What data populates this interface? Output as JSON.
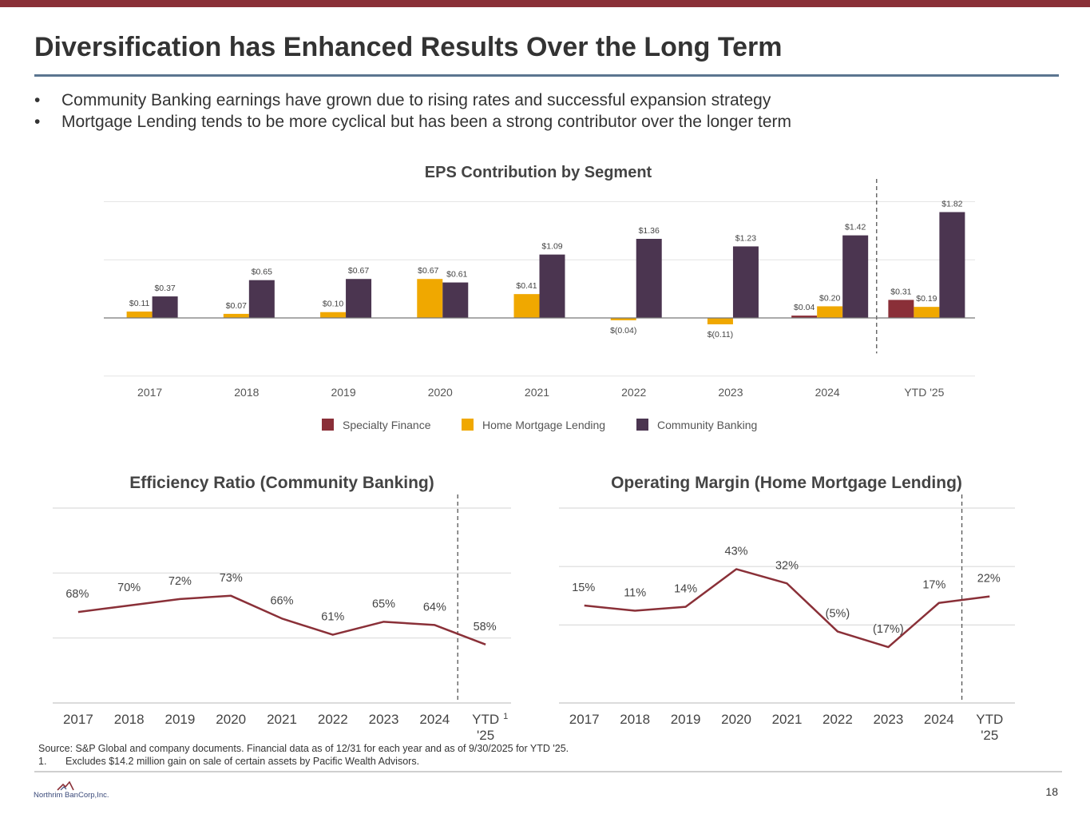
{
  "slide": {
    "title": "Diversification has Enhanced Results Over the Long Term",
    "bullets": [
      "Community Banking earnings have grown due to rising rates and successful expansion strategy",
      "Mortgage Lending tends to be more cyclical but has been a strong contributor over the longer term"
    ],
    "bullet_glyph": "•",
    "source_text": "Source: S&P Global and company documents. Financial data as of 12/31 for each year and as of 9/30/2025 for YTD '25.",
    "footnote_number": "1.",
    "footnote_text": "Excludes $14.2 million gain on sale of certain assets by Pacific Wealth Advisors.",
    "logo_text": "Northrim BanCorp,Inc.",
    "page_number": "18",
    "colors": {
      "top_bar": "#8a3038",
      "title_rule": "#5b7590",
      "specialty_finance": "#8a2f38",
      "home_mortgage": "#f0a800",
      "community_banking": "#4b3550",
      "line": "#8a3038"
    }
  },
  "chart_data": [
    {
      "type": "bar",
      "title": "EPS Contribution by Segment",
      "categories": [
        "2017",
        "2018",
        "2019",
        "2020",
        "2021",
        "2022",
        "2023",
        "2024",
        "YTD '25"
      ],
      "series": [
        {
          "name": "Specialty Finance",
          "color": "#8a2f38",
          "values": [
            null,
            null,
            null,
            null,
            null,
            null,
            null,
            0.04,
            0.31
          ],
          "labels": [
            "",
            "",
            "",
            "",
            "",
            "",
            "",
            "$0.04",
            "$0.31"
          ]
        },
        {
          "name": "Home Mortgage Lending",
          "color": "#f0a800",
          "values": [
            0.11,
            0.07,
            0.1,
            0.67,
            0.41,
            -0.04,
            -0.11,
            0.2,
            0.19
          ],
          "labels": [
            "$0.11",
            "$0.07",
            "$0.10",
            "$0.67",
            "$0.41",
            "$(0.04)",
            "$(0.11)",
            "$0.20",
            "$0.19"
          ]
        },
        {
          "name": "Community Banking",
          "color": "#4b3550",
          "values": [
            0.37,
            0.65,
            0.67,
            0.61,
            1.09,
            1.36,
            1.23,
            1.42,
            1.82
          ],
          "labels": [
            "$0.37",
            "$0.65",
            "$0.67",
            "$0.61",
            "$1.09",
            "$1.36",
            "$1.23",
            "$1.42",
            "$1.82"
          ]
        }
      ],
      "ylim": [
        -1.0,
        2.0
      ],
      "grid": true,
      "legend": "bottom",
      "divider_before": "YTD '25"
    },
    {
      "type": "line",
      "title": "Efficiency Ratio (Community Banking)",
      "categories": [
        "2017",
        "2018",
        "2019",
        "2020",
        "2021",
        "2022",
        "2023",
        "2024",
        "YTD '25"
      ],
      "category_lines": [
        [
          "2017"
        ],
        [
          "2018"
        ],
        [
          "2019"
        ],
        [
          "2020"
        ],
        [
          "2021"
        ],
        [
          "2022"
        ],
        [
          "2023"
        ],
        [
          "2024"
        ],
        [
          "YTD",
          "'25"
        ]
      ],
      "footnote_marker": "1",
      "series": [
        {
          "values": [
            68,
            70,
            72,
            73,
            66,
            61,
            65,
            64,
            58
          ],
          "labels": [
            "68%",
            "70%",
            "72%",
            "73%",
            "66%",
            "61%",
            "65%",
            "64%",
            "58%"
          ]
        }
      ],
      "ylim": [
        40,
        100
      ],
      "grid": true,
      "divider_before": "YTD '25"
    },
    {
      "type": "line",
      "title": "Operating Margin (Home Mortgage Lending)",
      "categories": [
        "2017",
        "2018",
        "2019",
        "2020",
        "2021",
        "2022",
        "2023",
        "2024",
        "YTD '25"
      ],
      "category_lines": [
        [
          "2017"
        ],
        [
          "2018"
        ],
        [
          "2019"
        ],
        [
          "2020"
        ],
        [
          "2021"
        ],
        [
          "2022"
        ],
        [
          "2023"
        ],
        [
          "2024"
        ],
        [
          "YTD",
          "'25"
        ]
      ],
      "series": [
        {
          "values": [
            15,
            11,
            14,
            43,
            32,
            -5,
            -17,
            17,
            22
          ],
          "labels": [
            "15%",
            "11%",
            "14%",
            "43%",
            "32%",
            "(5%)",
            "(17%)",
            "17%",
            "22%"
          ]
        }
      ],
      "ylim": [
        -60,
        90
      ],
      "grid": true,
      "divider_before": "YTD '25"
    }
  ]
}
